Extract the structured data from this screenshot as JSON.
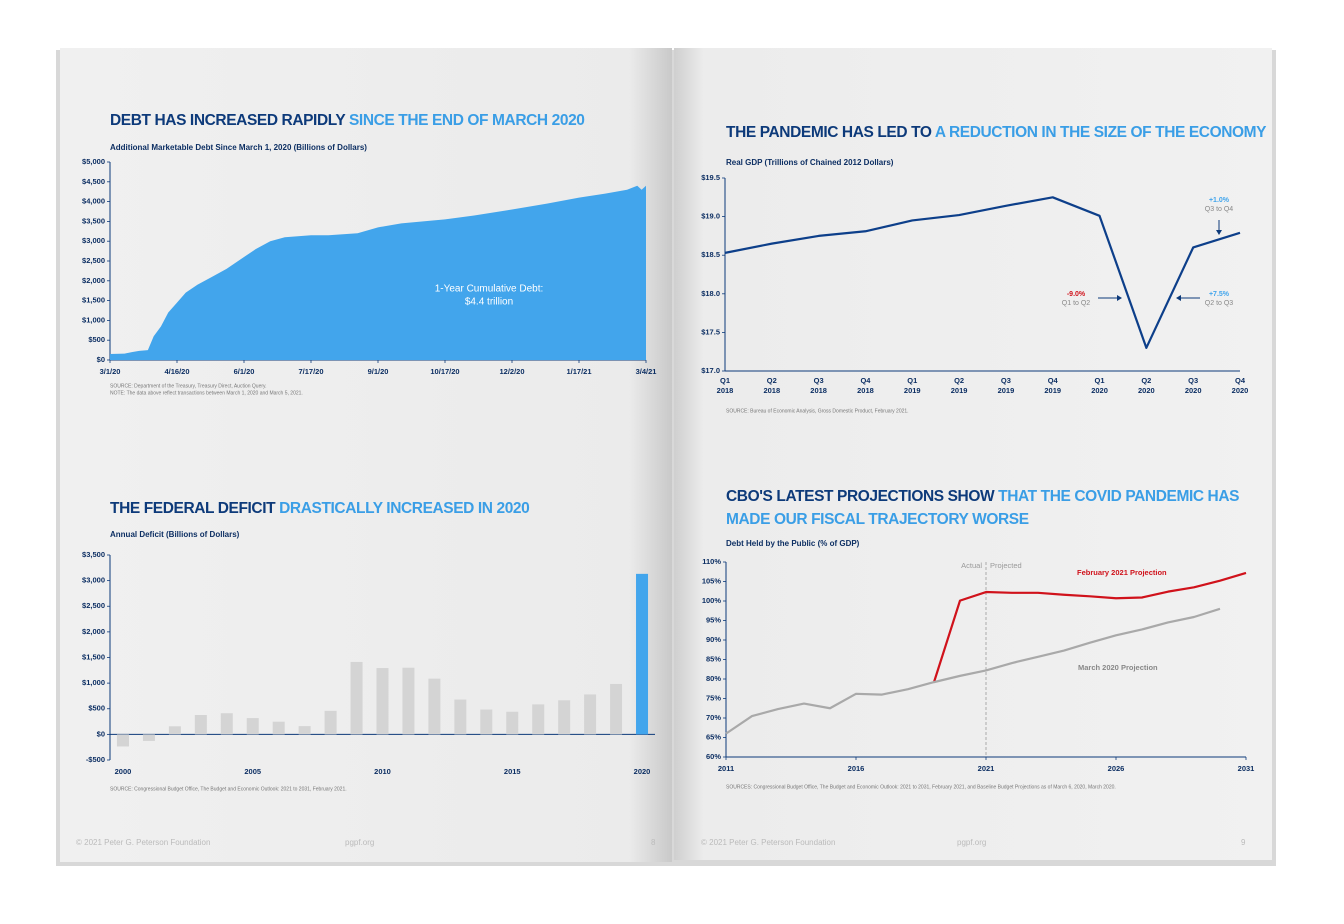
{
  "chart_data": [
    {
      "type": "area",
      "title": "DEBT HAS INCREASED RAPIDLY",
      "title_highlight": "SINCE THE END OF MARCH 2020",
      "subtitle": "Additional Marketable Debt Since March 1, 2020 (Billions of Dollars)",
      "x": [
        0,
        10,
        15,
        20,
        26,
        30,
        35,
        40,
        46,
        52,
        60,
        70,
        80,
        92,
        100,
        110,
        120,
        138,
        150,
        170,
        184,
        200,
        230,
        250,
        276,
        300,
        322,
        340,
        355,
        362,
        365,
        368
      ],
      "values": [
        150,
        160,
        200,
        230,
        250,
        600,
        850,
        1200,
        1450,
        1700,
        1900,
        2100,
        2300,
        2600,
        2800,
        3000,
        3100,
        3150,
        3150,
        3200,
        3350,
        3450,
        3550,
        3650,
        3800,
        3950,
        4100,
        4200,
        4300,
        4400,
        4300,
        4400
      ],
      "color": "#42a5ec",
      "xlim": [
        0,
        368
      ],
      "xticks": [
        {
          "value": 0,
          "label": "3/1/20"
        },
        {
          "value": 46,
          "label": "4/16/20"
        },
        {
          "value": 92,
          "label": "6/1/20"
        },
        {
          "value": 138,
          "label": "7/17/20"
        },
        {
          "value": 184,
          "label": "9/1/20"
        },
        {
          "value": 230,
          "label": "10/17/20"
        },
        {
          "value": 276,
          "label": "12/2/20"
        },
        {
          "value": 322,
          "label": "1/17/21"
        },
        {
          "value": 368,
          "label": "3/4/21"
        }
      ],
      "ylim": [
        0,
        5000
      ],
      "yticks": [
        {
          "value": 0,
          "label": "$0"
        },
        {
          "value": 500,
          "label": "$500"
        },
        {
          "value": 1000,
          "label": "$1,000"
        },
        {
          "value": 1500,
          "label": "$1,500"
        },
        {
          "value": 2000,
          "label": "$2,000"
        },
        {
          "value": 2500,
          "label": "$2,500"
        },
        {
          "value": 3000,
          "label": "$3,000"
        },
        {
          "value": 3500,
          "label": "$3,500"
        },
        {
          "value": 4000,
          "label": "$4,000"
        },
        {
          "value": 4500,
          "label": "$4,500"
        },
        {
          "value": 5000,
          "label": "$5,000"
        }
      ],
      "annotation": [
        "1-Year Cumulative Debt:",
        "$4.4 trillion"
      ],
      "source": [
        "SOURCE: Department of the Treasury, Treasury Direct, Auction Query.",
        "NOTE: The data above reflect transactions between March 1, 2020 and March 5, 2021."
      ]
    },
    {
      "type": "bar",
      "title": "THE FEDERAL DEFICIT",
      "title_highlight": "DRASTICALLY INCREASED IN 2020",
      "subtitle": "Annual Deficit (Billions of Dollars)",
      "categories": [
        "2000",
        null,
        null,
        null,
        null,
        "2005",
        null,
        null,
        null,
        null,
        "2010",
        null,
        null,
        null,
        null,
        "2015",
        null,
        null,
        null,
        null,
        "2020"
      ],
      "values": [
        -236,
        -128,
        158,
        378,
        413,
        318,
        248,
        161,
        459,
        1413,
        1294,
        1300,
        1087,
        680,
        485,
        442,
        585,
        665,
        779,
        984,
        3132
      ],
      "colors": [
        "#d4d4d4",
        "#d4d4d4",
        "#d4d4d4",
        "#d4d4d4",
        "#d4d4d4",
        "#d4d4d4",
        "#d4d4d4",
        "#d4d4d4",
        "#d4d4d4",
        "#d4d4d4",
        "#d4d4d4",
        "#d4d4d4",
        "#d4d4d4",
        "#d4d4d4",
        "#d4d4d4",
        "#d4d4d4",
        "#d4d4d4",
        "#d4d4d4",
        "#d4d4d4",
        "#d4d4d4",
        "#42a5ec"
      ],
      "ylim": [
        -500,
        3500
      ],
      "yticks": [
        {
          "value": -500,
          "label": "-$500"
        },
        {
          "value": 0,
          "label": "$0"
        },
        {
          "value": 500,
          "label": "$500"
        },
        {
          "value": 1000,
          "label": "$1,000"
        },
        {
          "value": 1500,
          "label": "$1,500"
        },
        {
          "value": 2000,
          "label": "$2,000"
        },
        {
          "value": 2500,
          "label": "$2,500"
        },
        {
          "value": 3000,
          "label": "$3,000"
        },
        {
          "value": 3500,
          "label": "$3,500"
        }
      ],
      "source": [
        "SOURCE: Congressional Budget Office, The Budget and Economic Outlook: 2021 to 2031, February 2021."
      ]
    },
    {
      "type": "line",
      "title": "THE PANDEMIC HAS LED TO",
      "title_highlight": "A REDUCTION IN THE SIZE OF THE ECONOMY",
      "subtitle": "Real GDP (Trillions of Chained 2012 Dollars)",
      "categories": [
        "Q1",
        "Q2",
        "Q3",
        "Q4",
        "Q1",
        "Q2",
        "Q3",
        "Q4",
        "Q1",
        "Q2",
        "Q3",
        "Q4"
      ],
      "category_years": [
        "2018",
        "2018",
        "2018",
        "2018",
        "2019",
        "2019",
        "2019",
        "2019",
        "2020",
        "2020",
        "2020",
        "2020"
      ],
      "series": [
        {
          "name": null,
          "color": "#0d3f8a",
          "values": [
            18.53,
            18.65,
            18.75,
            18.81,
            18.95,
            19.02,
            19.14,
            19.25,
            19.01,
            17.3,
            18.6,
            18.79
          ]
        }
      ],
      "ylim": [
        17,
        19.5
      ],
      "yticks": [
        {
          "value": 17,
          "label": "$17.0"
        },
        {
          "value": 17.5,
          "label": "$17.5"
        },
        {
          "value": 18,
          "label": "$18.0"
        },
        {
          "value": 18.5,
          "label": "$18.5"
        },
        {
          "value": 19,
          "label": "$19.0"
        },
        {
          "value": 19.5,
          "label": "$19.5"
        }
      ],
      "annotations": [
        {
          "text": "+1.0%",
          "period": "Q3 to Q4",
          "color": "#42a5ec"
        },
        {
          "text": "-9.0%",
          "period": "Q1 to Q2",
          "color": "#d0121b"
        },
        {
          "text": "+7.5%",
          "period": "Q2 to Q3",
          "color": "#42a5ec"
        }
      ],
      "source": [
        "SOURCE: Bureau of Economic Analysis, Gross Domestic Product, February 2021."
      ]
    },
    {
      "type": "line",
      "title": "CBO'S LATEST PROJECTIONS SHOW",
      "title_highlight": "THAT THE COVID PANDEMIC HAS",
      "title_highlight_2": "MADE OUR FISCAL TRAJECTORY WORSE",
      "subtitle": "Debt Held by the Public (% of GDP)",
      "x": [
        2011,
        2012,
        2013,
        2014,
        2015,
        2016,
        2017,
        2018,
        2019,
        2020,
        2021,
        2022,
        2023,
        2024,
        2025,
        2026,
        2027,
        2028,
        2029,
        2030,
        2031
      ],
      "series": [
        {
          "name": "February 2021 Projection",
          "color": "#d0121b",
          "values": [
            null,
            null,
            null,
            null,
            null,
            null,
            null,
            null,
            79.2,
            100.1,
            102.3,
            102.1,
            102.1,
            101.6,
            101.2,
            100.7,
            100.9,
            102.4,
            103.5,
            105.2,
            107.2
          ]
        },
        {
          "name": "March 2020 Projection",
          "color": "#a9a9a9",
          "values": [
            66,
            70.5,
            72.3,
            73.7,
            72.5,
            76.2,
            76,
            77.4,
            79.2,
            80.8,
            82.2,
            84.1,
            85.7,
            87.3,
            89.3,
            91.2,
            92.7,
            94.5,
            95.9,
            98,
            null
          ]
        }
      ],
      "xlim": [
        2011,
        2031
      ],
      "xticks": [
        2011,
        2016,
        2021,
        2026,
        2031
      ],
      "ylim": [
        60,
        110
      ],
      "yticks": [
        {
          "value": 60,
          "label": "60%"
        },
        {
          "value": 65,
          "label": "65%"
        },
        {
          "value": 70,
          "label": "70%"
        },
        {
          "value": 75,
          "label": "75%"
        },
        {
          "value": 80,
          "label": "80%"
        },
        {
          "value": 85,
          "label": "85%"
        },
        {
          "value": 90,
          "label": "90%"
        },
        {
          "value": 95,
          "label": "95%"
        },
        {
          "value": 100,
          "label": "100%"
        },
        {
          "value": 105,
          "label": "105%"
        },
        {
          "value": 110,
          "label": "110%"
        }
      ],
      "divider_x": 2021,
      "divider_labels": [
        "Actual",
        "Projected"
      ],
      "source": [
        "SOURCES: Congressional Budget Office, The Budget and Economic Outlook: 2021 to 2031, February 2021, and Baseline Budget Projections as of March 6, 2020, March 2020."
      ]
    }
  ],
  "footer": {
    "copyright": "© 2021 Peter G. Peterson Foundation",
    "site": "pgpf.org",
    "left_page": "8",
    "right_page": "9"
  }
}
